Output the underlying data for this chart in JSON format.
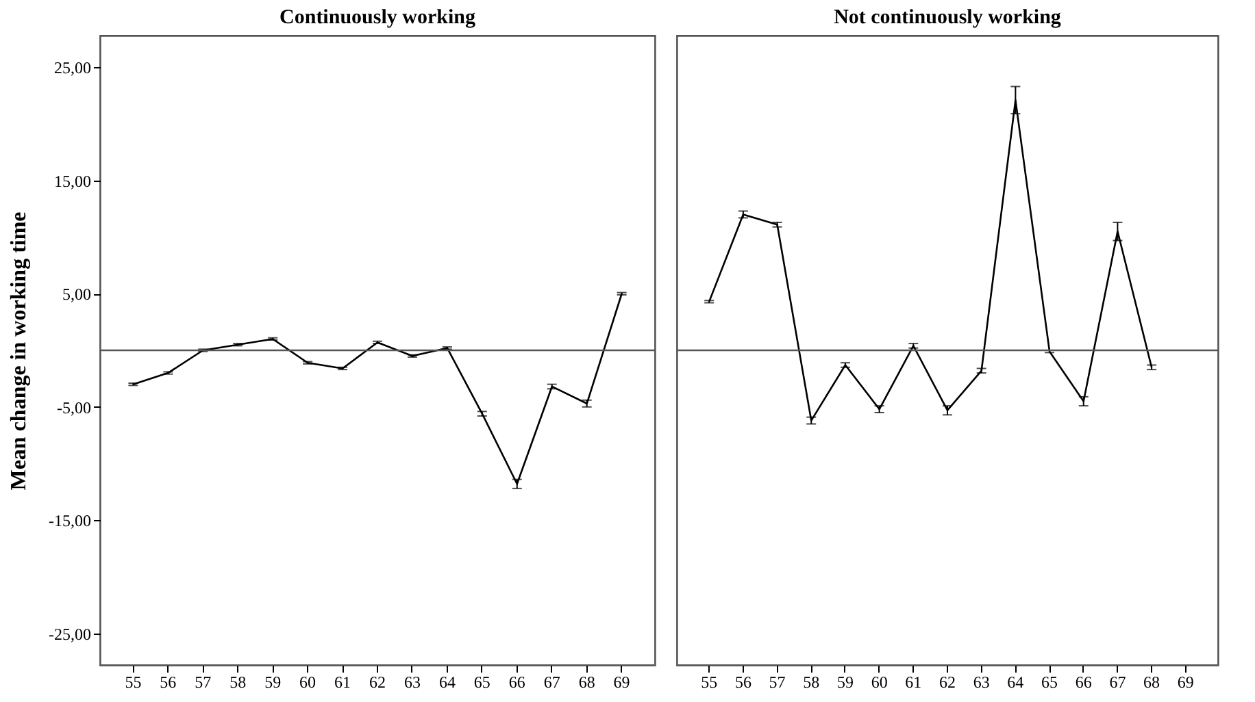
{
  "chart_data": [
    {
      "type": "line",
      "title": "Continuously working",
      "ylabel": "Mean change in working time",
      "categories": [
        "55",
        "56",
        "57",
        "58",
        "59",
        "60",
        "61",
        "62",
        "63",
        "64",
        "65",
        "66",
        "67",
        "68",
        "69"
      ],
      "series": [
        {
          "color": "#000000",
          "values": [
            -3.0,
            -2.0,
            0.0,
            0.5,
            1.0,
            -1.1,
            -1.6,
            0.7,
            -0.5,
            0.2,
            -5.6,
            -11.8,
            -3.2,
            -4.7,
            5.0
          ],
          "errors": [
            0.1,
            0.1,
            0.1,
            0.1,
            0.1,
            0.1,
            0.1,
            0.1,
            0.1,
            0.1,
            0.2,
            0.4,
            0.2,
            0.3,
            0.1
          ]
        }
      ],
      "ylim": [
        -27.8,
        27.8
      ],
      "yticks": [
        {
          "value": -25,
          "label": "-25,00"
        },
        {
          "value": -15,
          "label": "-15,00"
        },
        {
          "value": -5,
          "label": "-5,00"
        },
        {
          "value": 5,
          "label": "5,00"
        },
        {
          "value": 15,
          "label": "15,00"
        },
        {
          "value": 25,
          "label": "25,00"
        }
      ],
      "ref_lines": [
        {
          "axis": "y",
          "value": 0,
          "color": "#555555"
        }
      ]
    },
    {
      "type": "line",
      "title": "Not continuously working",
      "categories": [
        "55",
        "56",
        "57",
        "58",
        "59",
        "60",
        "61",
        "62",
        "63",
        "64",
        "65",
        "66",
        "67",
        "68",
        "69"
      ],
      "series": [
        {
          "color": "#000000",
          "values": [
            4.3,
            12.0,
            11.1,
            -6.2,
            -1.3,
            -5.2,
            0.4,
            -5.3,
            -1.8,
            22.1,
            -0.1,
            -4.5,
            10.5,
            -1.5,
            null
          ],
          "errors": [
            0.1,
            0.3,
            0.2,
            0.3,
            0.2,
            0.3,
            0.2,
            0.4,
            0.2,
            1.2,
            0.1,
            0.4,
            0.8,
            0.2,
            null
          ]
        }
      ],
      "ylim": [
        -27.8,
        27.8
      ],
      "tick_labels": "x",
      "ref_lines": [
        {
          "axis": "y",
          "value": 0,
          "color": "#555555"
        }
      ]
    }
  ]
}
